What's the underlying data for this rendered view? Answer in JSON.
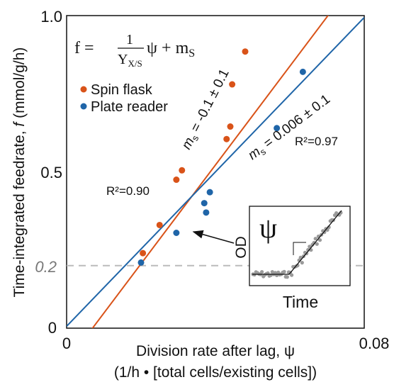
{
  "chart_data": {
    "type": "scatter",
    "xlabel": "Division rate after lag, ψ",
    "xlabel_line2": "(1/h • [total cells/existing cells])",
    "ylabel_prefix": "Time-integrated feedrate, ",
    "ylabel_var": "f",
    "ylabel_suffix": " (mmol/g/h)",
    "xlim": [
      0,
      0.08
    ],
    "ylim": [
      0,
      1.0
    ],
    "x_ticks": [
      "0",
      "0.08"
    ],
    "y_ticks": [
      "0",
      "0.5",
      "1.0"
    ],
    "y_extra_tick": "0.2",
    "reference_line_y": 0.2,
    "legend_position": "upper-left",
    "equation": {
      "lhs": "f = ",
      "numerator": "1",
      "denom_main": "Y",
      "denom_sub": "X/S",
      "psi": "ψ",
      "plus": " + m",
      "sub": "S"
    },
    "series": [
      {
        "name": "Spin flask",
        "color": "#D95319",
        "x": [
          0.0205,
          0.025,
          0.0295,
          0.031,
          0.043,
          0.044,
          0.0445,
          0.048
        ],
        "y": [
          0.24,
          0.33,
          0.475,
          0.505,
          0.605,
          0.645,
          0.78,
          0.885
        ],
        "fit_slope": 15.8,
        "fit_intercept": -0.11,
        "fit_label_pre": "s",
        "fit_label_var": "m",
        "fit_label_post": " = -0.1 ± 0.1",
        "r2_label": "R²=0.90"
      },
      {
        "name": "Plate reader",
        "color": "#1F65A8",
        "x": [
          0.02,
          0.0295,
          0.037,
          0.0375,
          0.0385,
          0.0565,
          0.0635
        ],
        "y": [
          0.21,
          0.305,
          0.4,
          0.37,
          0.435,
          0.64,
          0.82
        ],
        "fit_slope": 12.35,
        "fit_intercept": 0.006,
        "fit_label_pre": "s",
        "fit_label_var": "m",
        "fit_label_post": " = 0.006 ± 0.1",
        "r2_label": "R²=0.97"
      }
    ],
    "inset": {
      "ylabel": "OD",
      "xlabel": "Time",
      "symbol": "ψ"
    }
  }
}
